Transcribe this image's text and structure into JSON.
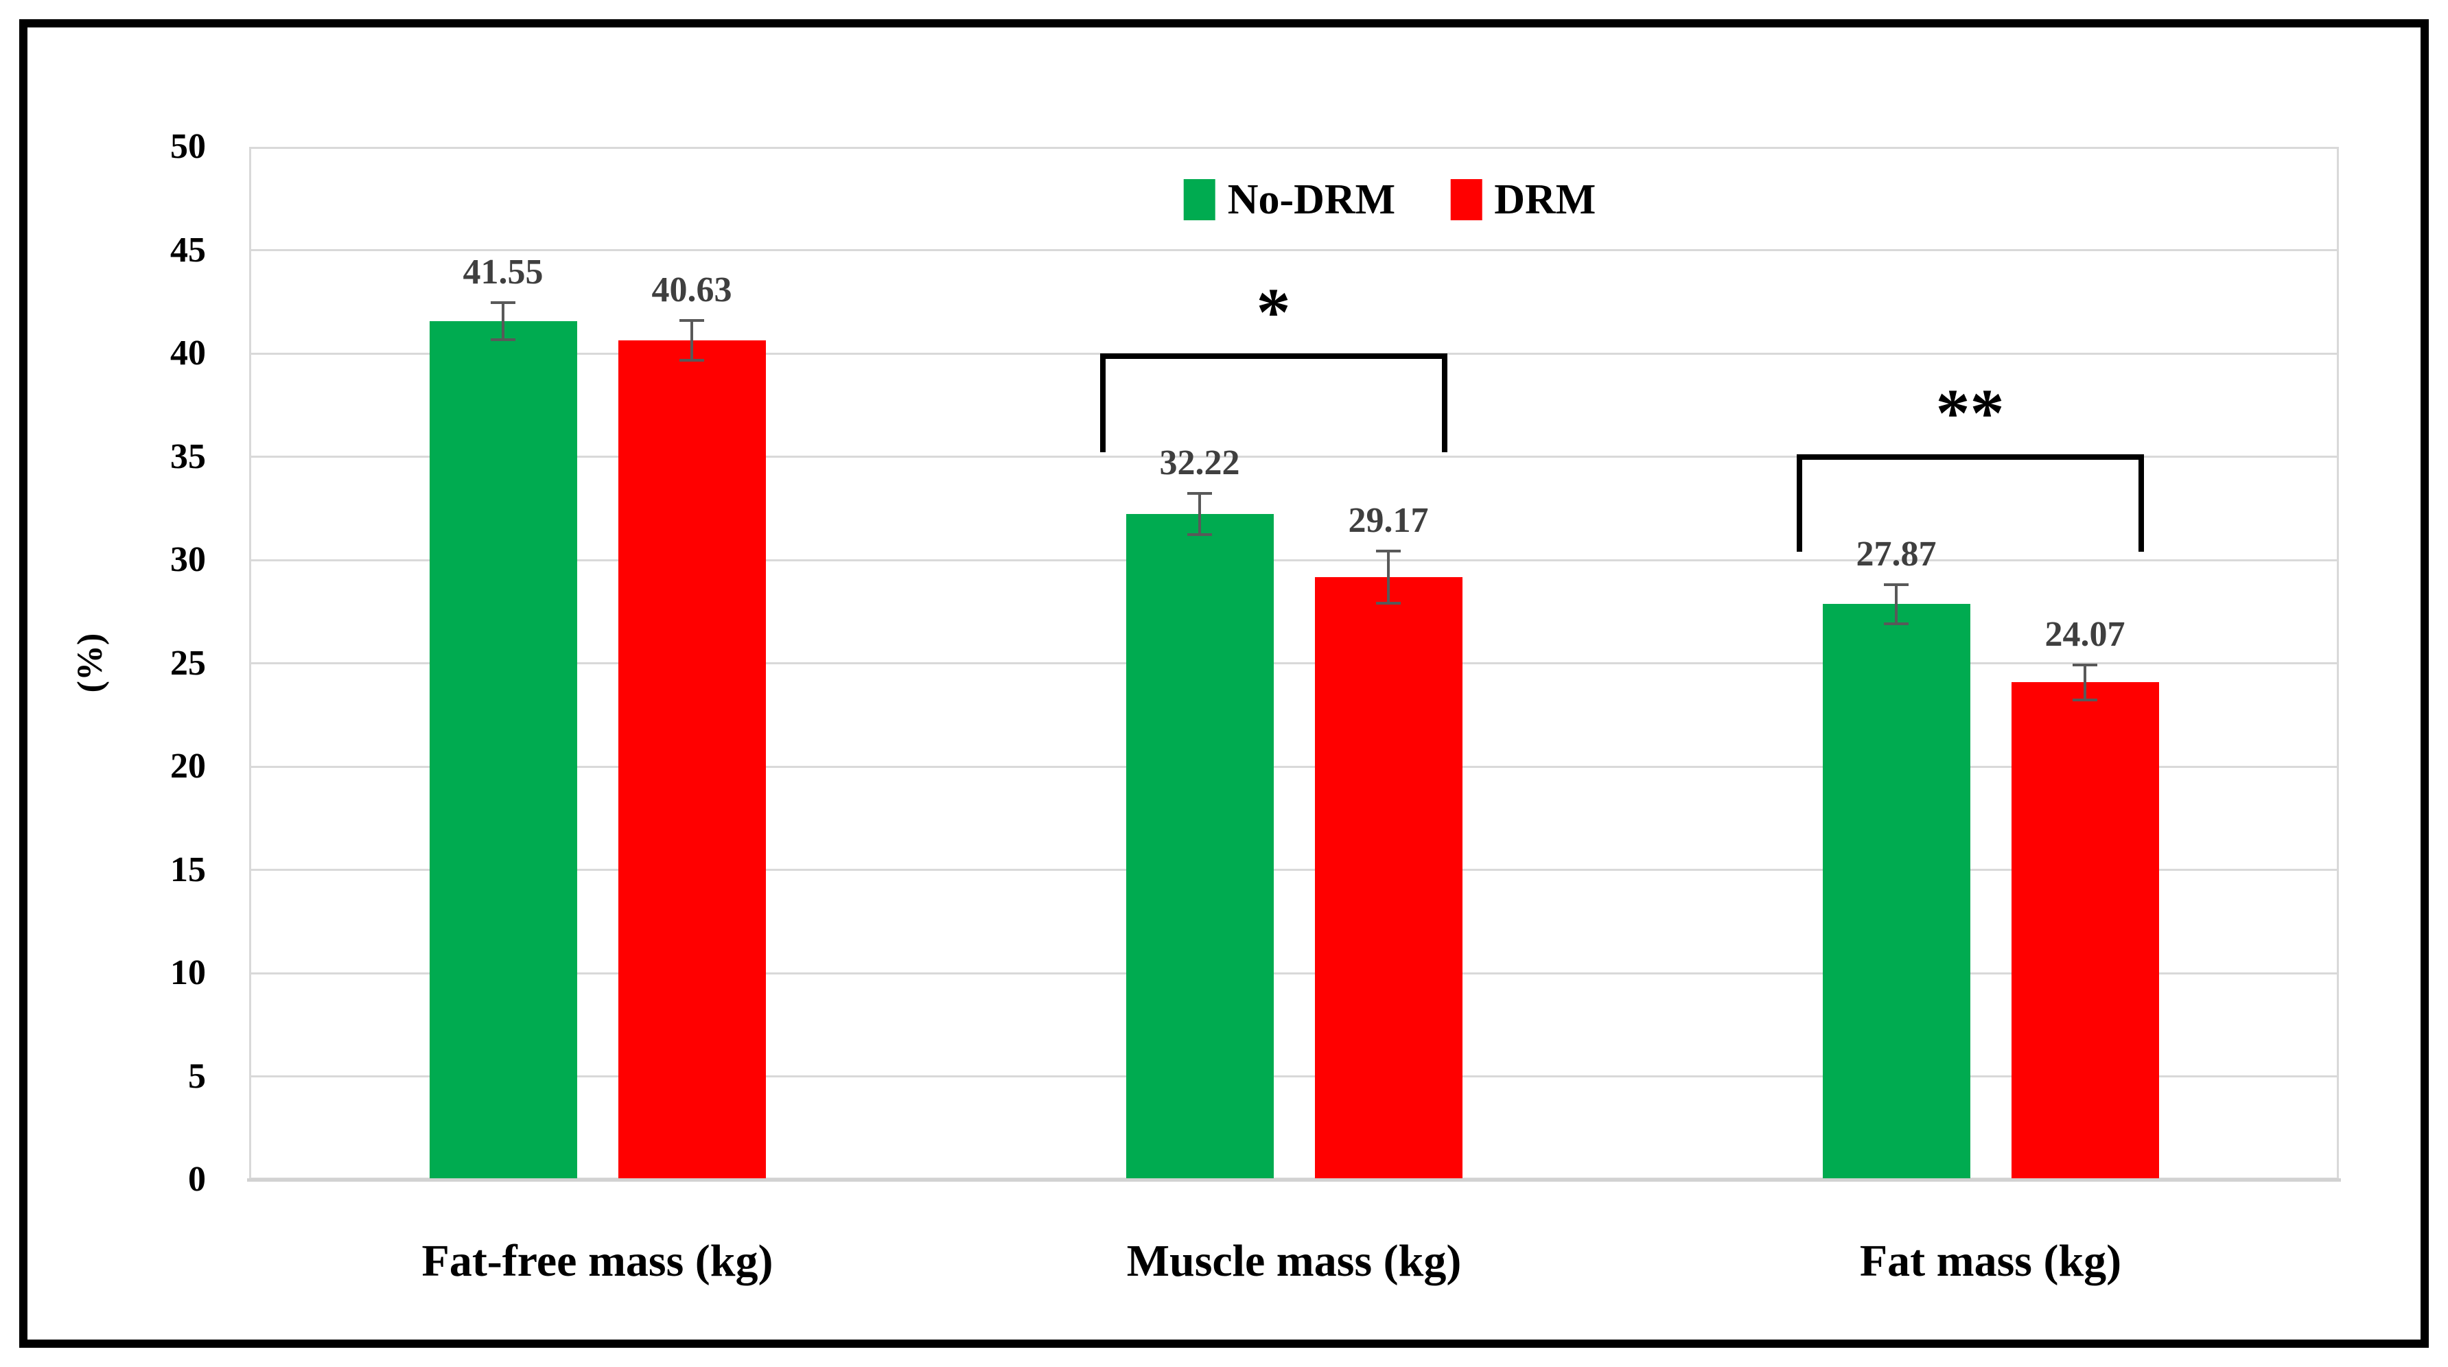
{
  "chart_data": {
    "type": "bar",
    "categories": [
      "Fat-free mass (kg)",
      "Muscle mass (kg)",
      "Fat mass (kg)"
    ],
    "series": [
      {
        "name": "No-DRM",
        "color": "#00AB50",
        "values": [
          41.55,
          32.22,
          27.87
        ],
        "error": [
          0.9,
          1.0,
          0.95
        ]
      },
      {
        "name": "DRM",
        "color": "#FF0000",
        "values": [
          40.63,
          29.17,
          24.07
        ],
        "error": [
          0.95,
          1.25,
          0.85
        ]
      }
    ],
    "ylabel": "(%)",
    "ylim": [
      0,
      50
    ],
    "ytick_step": 5,
    "grid": true,
    "legend_position": "top-center",
    "value_labels_visible": true,
    "error_bars_visible": true,
    "annotations": [
      {
        "type": "significance-bracket",
        "category_index": 1,
        "label": "*",
        "top_value": 40.0,
        "leg_end_value": 35.2
      },
      {
        "type": "significance-bracket",
        "category_index": 2,
        "label": "**",
        "top_value": 35.1,
        "leg_end_value": 30.4
      }
    ]
  },
  "styles": {
    "bar_green": "#00AB50",
    "bar_red": "#FF0000",
    "gridline_color": "#d9d9d9",
    "error_bar_color": "#595959",
    "value_label_color": "#3f3f3f",
    "frame_border_color": "#000000"
  }
}
